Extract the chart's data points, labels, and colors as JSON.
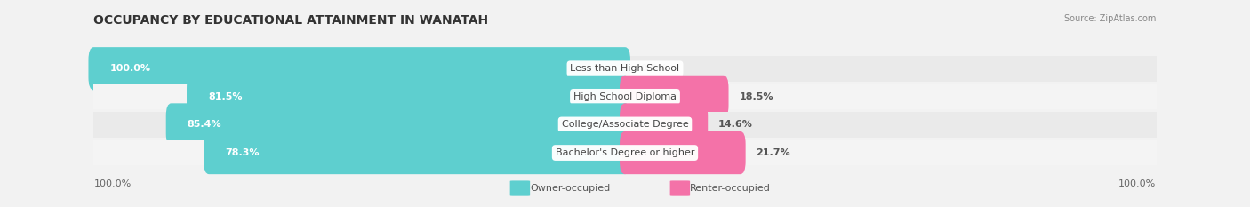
{
  "title": "OCCUPANCY BY EDUCATIONAL ATTAINMENT IN WANATAH",
  "source": "Source: ZipAtlas.com",
  "categories": [
    "Less than High School",
    "High School Diploma",
    "College/Associate Degree",
    "Bachelor's Degree or higher"
  ],
  "owner_values": [
    100.0,
    81.5,
    85.4,
    78.3
  ],
  "renter_values": [
    0.0,
    18.5,
    14.6,
    21.7
  ],
  "owner_color": "#5ECFCF",
  "renter_color": "#F472A8",
  "bg_color": "#F2F2F2",
  "row_colors": [
    "#EAEAEA",
    "#F4F4F4",
    "#EAEAEA",
    "#F4F4F4"
  ],
  "title_fontsize": 10,
  "bar_label_fontsize": 8,
  "cat_label_fontsize": 8,
  "tick_fontsize": 8,
  "legend_fontsize": 8,
  "source_fontsize": 7
}
